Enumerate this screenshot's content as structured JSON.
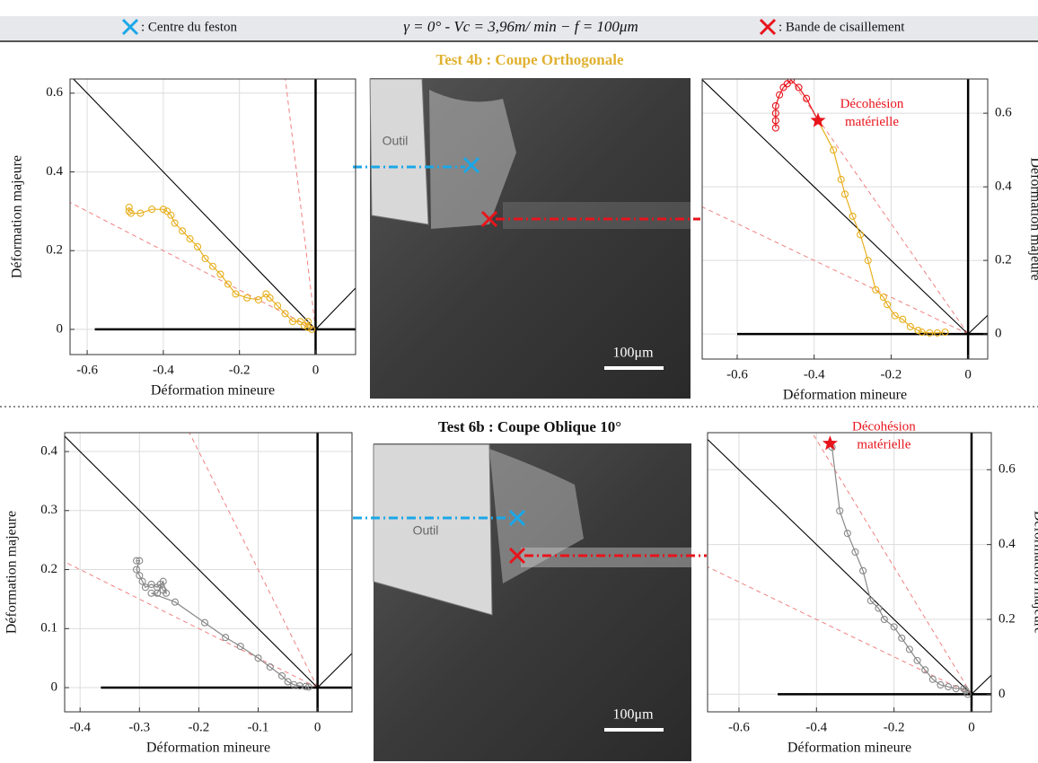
{
  "header": {
    "legend": [
      {
        "label": ": Centre du feston",
        "color": "#1aa7e8"
      },
      {
        "label": ": Bande de cisaillement",
        "color": "#e8141c"
      }
    ],
    "parameters": "γ = 0° - Vc = 3,96m/ min − f = 100μm"
  },
  "panels": [
    {
      "title": "Test 4b : Coupe Orthogonale",
      "title_color": "#e0b030",
      "tool_label": "Outil",
      "scale_label": "100μm"
    },
    {
      "title": "Test 6b : Coupe Oblique 10°",
      "title_color": "#111111",
      "tool_label": "Outil",
      "scale_label": "100μm"
    }
  ],
  "chart_data": [
    {
      "type": "line",
      "xlabel": "Déformation mineure",
      "ylabel": "Déformation majeure",
      "xlim": [
        -0.645,
        0.105
      ],
      "ylim": [
        -0.064,
        0.636
      ],
      "xticks": [
        -0.6,
        -0.4,
        -0.2,
        0
      ],
      "yticks": [
        0,
        0.2,
        0.4,
        0.6
      ],
      "y_axis_side": "left",
      "grid": true,
      "axis_line_start": -0.58,
      "reference_lines": [
        {
          "slope": -1,
          "color": "#000000",
          "dashed": false
        },
        {
          "slope": 1,
          "color": "#000000",
          "dashed": false
        },
        {
          "slope": -0.5,
          "color": "#f08080",
          "dashed": true
        },
        {
          "slope": -8,
          "color": "#f08080",
          "dashed": true
        }
      ],
      "series": [
        {
          "color": "#e8b020",
          "x": [
            -0.49,
            -0.49,
            -0.485,
            -0.46,
            -0.43,
            -0.4,
            -0.39,
            -0.38,
            -0.37,
            -0.35,
            -0.33,
            -0.31,
            -0.29,
            -0.27,
            -0.25,
            -0.23,
            -0.21,
            -0.18,
            -0.15,
            -0.13,
            -0.12,
            -0.1,
            -0.08,
            -0.06,
            -0.04,
            -0.03,
            -0.02,
            -0.02,
            -0.01
          ],
          "y": [
            0.31,
            0.3,
            0.295,
            0.295,
            0.305,
            0.305,
            0.3,
            0.29,
            0.27,
            0.25,
            0.23,
            0.21,
            0.18,
            0.16,
            0.14,
            0.115,
            0.09,
            0.08,
            0.075,
            0.09,
            0.08,
            0.06,
            0.04,
            0.02,
            0.02,
            0.01,
            0.005,
            0.02,
            0
          ]
        }
      ]
    },
    {
      "type": "line",
      "xlabel": "Déformation mineure",
      "ylabel": "Déformation majeure",
      "xlim": [
        -0.691,
        0.051
      ],
      "ylim": [
        -0.068,
        0.693
      ],
      "xticks": [
        -0.6,
        -0.4,
        -0.2,
        0
      ],
      "yticks": [
        0,
        0.2,
        0.4,
        0.6
      ],
      "y_axis_side": "right",
      "grid": true,
      "axis_line_start": -0.6,
      "reference_lines": [
        {
          "slope": -1,
          "color": "#000000",
          "dashed": false
        },
        {
          "slope": 1,
          "color": "#000000",
          "dashed": false
        },
        {
          "slope": -0.5,
          "color": "#f08080",
          "dashed": true
        },
        {
          "slope": -1.5,
          "color": "#f08080",
          "dashed": true
        }
      ],
      "series": [
        {
          "color": "#e8b020",
          "x": [
            -0.06,
            -0.08,
            -0.1,
            -0.12,
            -0.13,
            -0.15,
            -0.17,
            -0.19,
            -0.21,
            -0.22,
            -0.24,
            -0.26,
            -0.28,
            -0.3,
            -0.32,
            -0.33,
            -0.35,
            -0.39
          ],
          "y": [
            0.005,
            0.003,
            0.003,
            0.005,
            0.01,
            0.02,
            0.04,
            0.05,
            0.08,
            0.1,
            0.12,
            0.2,
            0.27,
            0.32,
            0.38,
            0.42,
            0.5,
            0.58
          ]
        },
        {
          "color": "#e8141c",
          "x": [
            -0.39,
            -0.42,
            -0.44,
            -0.46,
            -0.47,
            -0.48,
            -0.49,
            -0.5,
            -0.5,
            -0.5,
            -0.5
          ],
          "y": [
            0.58,
            0.64,
            0.67,
            0.69,
            0.68,
            0.67,
            0.65,
            0.62,
            0.6,
            0.58,
            0.56
          ]
        }
      ],
      "star": {
        "x": -0.39,
        "y": 0.58,
        "color": "#e8141c"
      },
      "annotation": [
        "Décohésion",
        "matérielle"
      ]
    },
    {
      "type": "line",
      "xlabel": "Déformation mineure",
      "ylabel": "Déformation majeure",
      "xlim": [
        -0.426,
        0.058
      ],
      "ylim": [
        -0.041,
        0.432
      ],
      "xticks": [
        -0.4,
        -0.3,
        -0.2,
        -0.1,
        0
      ],
      "yticks": [
        0,
        0.1,
        0.2,
        0.3,
        0.4
      ],
      "y_axis_side": "left",
      "grid": true,
      "axis_line_start": -0.365,
      "reference_lines": [
        {
          "slope": -1,
          "color": "#000000",
          "dashed": false
        },
        {
          "slope": 1,
          "color": "#000000",
          "dashed": false
        },
        {
          "slope": -0.5,
          "color": "#f08080",
          "dashed": true
        },
        {
          "slope": -2,
          "color": "#f08080",
          "dashed": true
        }
      ],
      "series": [
        {
          "color": "#888888",
          "x": [
            -0.305,
            -0.3,
            -0.305,
            -0.3,
            -0.295,
            -0.29,
            -0.28,
            -0.27,
            -0.265,
            -0.26,
            -0.255,
            -0.26,
            -0.27,
            -0.28,
            -0.24,
            -0.19,
            -0.155,
            -0.13,
            -0.1,
            -0.08,
            -0.06,
            -0.05,
            -0.04,
            -0.03,
            -0.02,
            -0.015
          ],
          "y": [
            0.215,
            0.215,
            0.2,
            0.19,
            0.18,
            0.17,
            0.175,
            0.17,
            0.175,
            0.165,
            0.16,
            0.18,
            0.16,
            0.16,
            0.145,
            0.11,
            0.085,
            0.07,
            0.05,
            0.035,
            0.02,
            0.01,
            0.005,
            0.003,
            0.002,
            0.001
          ]
        }
      ]
    },
    {
      "type": "line",
      "xlabel": "Déformation mineure",
      "ylabel": "Déformation majeure",
      "xlim": [
        -0.681,
        0.051
      ],
      "ylim": [
        -0.047,
        0.699
      ],
      "xticks": [
        -0.6,
        -0.4,
        -0.2,
        0
      ],
      "yticks": [
        0,
        0.2,
        0.4,
        0.6
      ],
      "y_axis_side": "right",
      "grid": true,
      "axis_line_start": -0.5,
      "reference_lines": [
        {
          "slope": -1,
          "color": "#000000",
          "dashed": false
        },
        {
          "slope": 1,
          "color": "#000000",
          "dashed": false
        },
        {
          "slope": -0.5,
          "color": "#f08080",
          "dashed": true
        },
        {
          "slope": -1.7,
          "color": "#f08080",
          "dashed": true
        }
      ],
      "series": [
        {
          "color": "#888888",
          "x": [
            -0.01,
            -0.015,
            -0.02,
            -0.04,
            -0.06,
            -0.08,
            -0.1,
            -0.12,
            -0.14,
            -0.16,
            -0.18,
            -0.2,
            -0.225,
            -0.24,
            -0.26,
            -0.28,
            -0.3,
            -0.32,
            -0.34,
            -0.36
          ],
          "y": [
            0,
            0.01,
            0.015,
            0.015,
            0.02,
            0.025,
            0.04,
            0.065,
            0.09,
            0.12,
            0.15,
            0.18,
            0.2,
            0.23,
            0.25,
            0.33,
            0.38,
            0.43,
            0.49,
            0.66
          ]
        }
      ],
      "star": {
        "x": -0.365,
        "y": 0.67,
        "color": "#e8141c"
      },
      "annotation": [
        "Décohésion",
        "matérielle"
      ]
    }
  ]
}
